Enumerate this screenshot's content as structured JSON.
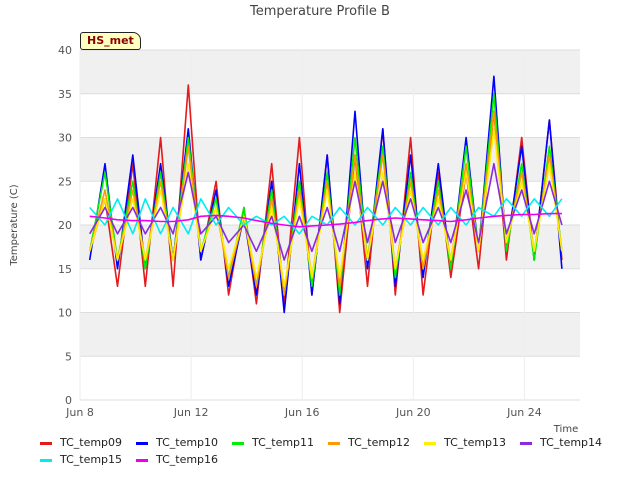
{
  "chart_data": {
    "type": "line",
    "title": "Temperature Profile B",
    "xlabel": "Time",
    "ylabel": "Temperature (C)",
    "badge": "HS_met",
    "xlim": [
      0,
      18
    ],
    "ylim": [
      0,
      40
    ],
    "yticks": [
      0,
      5,
      10,
      15,
      20,
      25,
      30,
      35,
      40
    ],
    "xticks": [
      {
        "day": 0,
        "label": "Jun 8"
      },
      {
        "day": 4,
        "label": "Jun 12"
      },
      {
        "day": 8,
        "label": "Jun 16"
      },
      {
        "day": 12,
        "label": "Jun 20"
      },
      {
        "day": 16,
        "label": "Jun 24"
      }
    ],
    "x_days": [
      0.35,
      0.9,
      1.35,
      1.9,
      2.35,
      2.9,
      3.35,
      3.9,
      4.35,
      4.9,
      5.35,
      5.9,
      6.35,
      6.9,
      7.35,
      7.9,
      8.35,
      8.9,
      9.35,
      9.9,
      10.35,
      10.9,
      11.35,
      11.9,
      12.35,
      12.9,
      13.35,
      13.9,
      14.35,
      14.9,
      15.35,
      15.9,
      16.35,
      16.9,
      17.35
    ],
    "series": [
      {
        "name": "TC_temp09",
        "color": "#e41a1c",
        "values": [
          17,
          23,
          13,
          27,
          13,
          30,
          13,
          36,
          16,
          25,
          12,
          22,
          11,
          27,
          11,
          30,
          12,
          28,
          10,
          28,
          13,
          31,
          12,
          30,
          12,
          26,
          14,
          26,
          15,
          33,
          16,
          30,
          16,
          32,
          16
        ]
      },
      {
        "name": "TC_temp10",
        "color": "#0000ff",
        "values": [
          16,
          27,
          15,
          28,
          15,
          27,
          16,
          31,
          16,
          24,
          13,
          21,
          12,
          25,
          10,
          27,
          12,
          28,
          11,
          33,
          15,
          31,
          13,
          28,
          14,
          27,
          15,
          30,
          17,
          37,
          17,
          29,
          16,
          32,
          15
        ]
      },
      {
        "name": "TC_temp11",
        "color": "#00ee00",
        "values": [
          17,
          26,
          16,
          25,
          15,
          26,
          16,
          30,
          17,
          23,
          14,
          22,
          13,
          24,
          12,
          25,
          13,
          26,
          12,
          30,
          16,
          29,
          14,
          26,
          15,
          25,
          15,
          29,
          17,
          35,
          17,
          27,
          16,
          29,
          17
        ]
      },
      {
        "name": "TC_temp12",
        "color": "#ff9900",
        "values": [
          17,
          24,
          16,
          24,
          16,
          25,
          16,
          29,
          17,
          22,
          14,
          21,
          13,
          23,
          12,
          24,
          14,
          25,
          13,
          28,
          16,
          28,
          15,
          25,
          15,
          24,
          16,
          27,
          17,
          33,
          18,
          26,
          17,
          28,
          17
        ]
      },
      {
        "name": "TC_temp13",
        "color": "#ffee00",
        "values": [
          17,
          23,
          16,
          23,
          16,
          24,
          16,
          27,
          17,
          22,
          15,
          21,
          14,
          22,
          13,
          23,
          14,
          24,
          14,
          26,
          16,
          26,
          15,
          24,
          16,
          23,
          16,
          26,
          17,
          31,
          18,
          25,
          17,
          27,
          17
        ]
      },
      {
        "name": "TC_temp14",
        "color": "#8a2be2",
        "values": [
          19,
          22,
          19,
          22,
          19,
          22,
          19,
          26,
          19,
          21,
          18,
          20,
          17,
          21,
          16,
          21,
          17,
          22,
          17,
          25,
          18,
          25,
          18,
          23,
          18,
          22,
          18,
          24,
          18,
          27,
          19,
          24,
          19,
          25,
          20
        ]
      },
      {
        "name": "TC_temp15",
        "color": "#00eeee",
        "values": [
          22,
          20,
          23,
          19,
          23,
          19,
          22,
          19,
          23,
          20,
          22,
          20,
          21,
          20,
          21,
          19,
          21,
          20,
          22,
          20,
          22,
          20,
          22,
          20,
          22,
          20,
          22,
          20,
          22,
          21,
          23,
          21,
          23,
          21,
          23
        ]
      },
      {
        "name": "TC_temp16",
        "color": "#ee00ee",
        "values": [
          21,
          20.8,
          20.6,
          20.5,
          20.5,
          20.4,
          20.4,
          20.6,
          21,
          21.1,
          21,
          20.8,
          20.5,
          20.2,
          20,
          19.8,
          19.9,
          20,
          20.1,
          20.3,
          20.5,
          20.7,
          20.8,
          20.7,
          20.6,
          20.5,
          20.4,
          20.6,
          20.8,
          21,
          21.1,
          21.2,
          21.2,
          21.3,
          21.3
        ]
      }
    ],
    "legend_placement": "bottom",
    "grid": "horizontal-bands"
  }
}
